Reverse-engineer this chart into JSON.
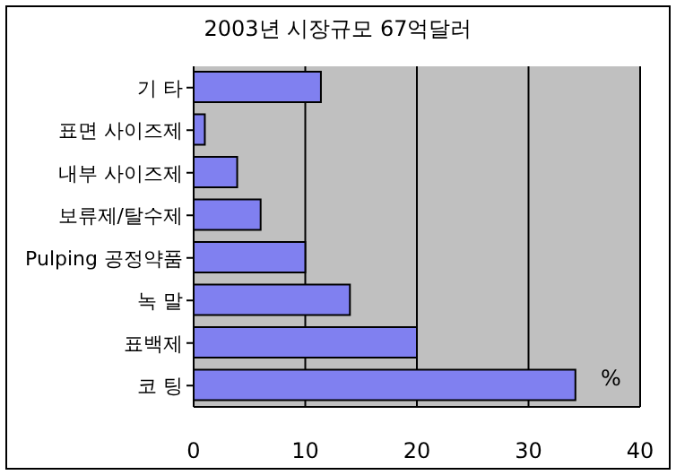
{
  "chart_data": {
    "type": "bar",
    "orientation": "horizontal",
    "title": "2003년 시장규모 67억달러",
    "categories": [
      "기 타",
      "표면 사이즈제",
      "내부 사이즈제",
      "보류제/탈수제",
      "Pulping 공정약품",
      "녹 말",
      "표백제",
      "코 팅"
    ],
    "values": [
      11.4,
      1,
      3.9,
      6,
      10,
      14,
      20,
      34.2
    ],
    "color": "#8080f0",
    "xlim": [
      0,
      40
    ],
    "xticks": [
      0,
      10,
      20,
      30,
      40
    ],
    "grid": "x",
    "annotations": [
      "%"
    ]
  }
}
